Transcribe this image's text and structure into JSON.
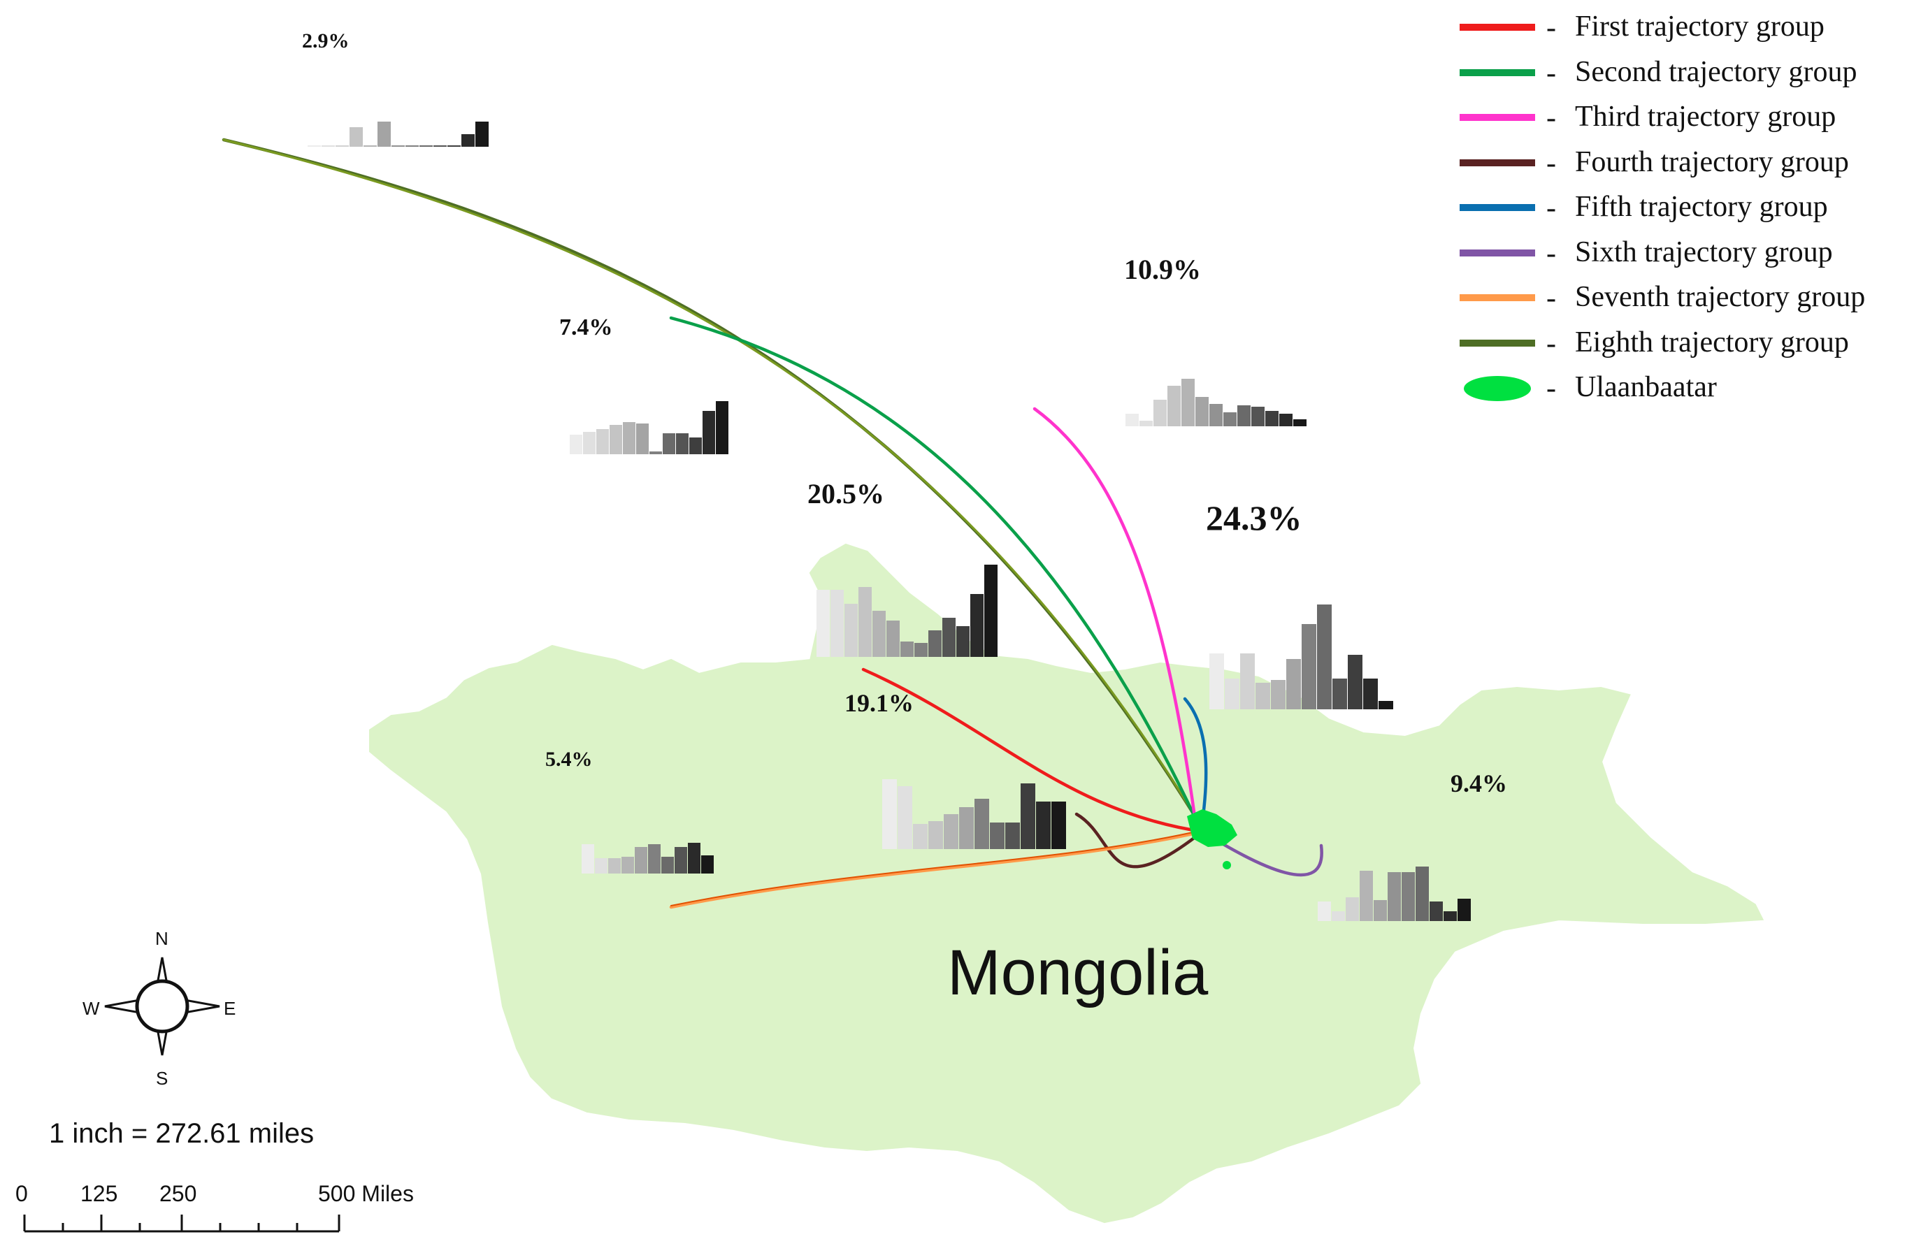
{
  "legend": {
    "items": [
      {
        "label": "First trajectory group",
        "color": "#ef1c1c"
      },
      {
        "label": "Second trajectory group",
        "color": "#0aa04a"
      },
      {
        "label": "Third trajectory group",
        "color": "#ff33cc"
      },
      {
        "label": "Fourth trajectory group",
        "color": "#5a2222"
      },
      {
        "label": "Fifth trajectory group",
        "color": "#0a6fb0"
      },
      {
        "label": "Sixth trajectory group",
        "color": "#8055a6"
      },
      {
        "label": "Seventh trajectory group",
        "color": "#ff9a4a"
      },
      {
        "label": "Eighth trajectory group",
        "color": "#4e6e25"
      },
      {
        "label": "Ulaanbaatar",
        "color": "#00e040"
      }
    ],
    "dash": "-"
  },
  "percentages": {
    "p29": "2.9%",
    "p74": "7.4%",
    "p109": "10.9%",
    "p205": "20.5%",
    "p243": "24.3%",
    "p191": "19.1%",
    "p54": "5.4%",
    "p94": "9.4%"
  },
  "country": "Mongolia",
  "colors": {
    "land": "#dcf3c8",
    "ulaanbaatar": "#00e040"
  },
  "compass": {
    "n": "N",
    "s": "S",
    "e": "E",
    "w": "W"
  },
  "scale": {
    "ratio": "1 inch = 272.61 miles",
    "tick_0": "0",
    "tick_125": "125",
    "tick_250": "250",
    "tick_500": "500 Miles"
  }
}
